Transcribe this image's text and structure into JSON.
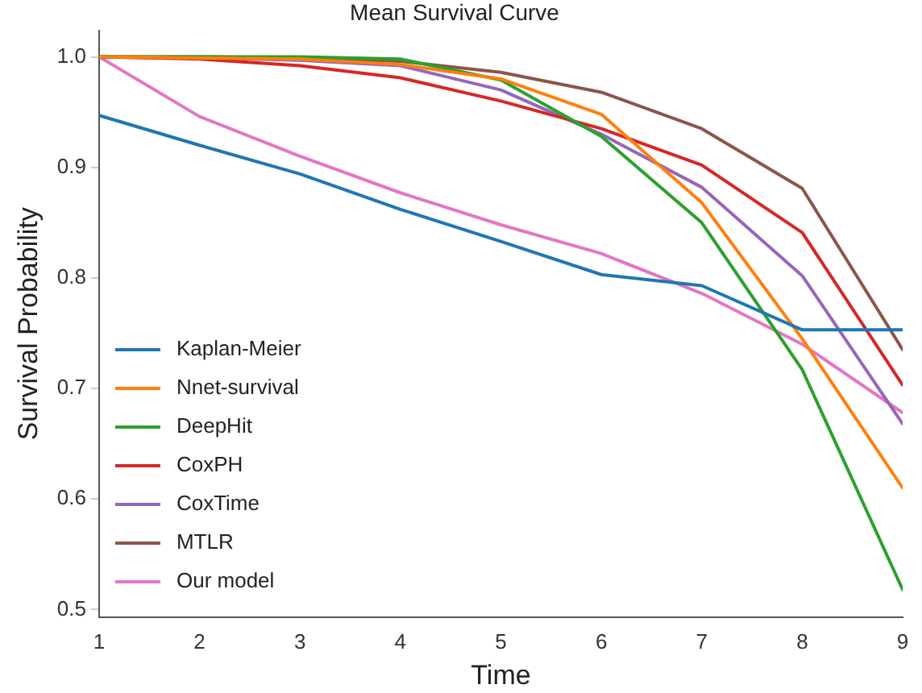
{
  "chart_data": {
    "type": "line",
    "title": "Mean Survival Curve",
    "xlabel": "Time",
    "ylabel": "Survival Probability",
    "x": [
      1,
      2,
      3,
      4,
      5,
      6,
      7,
      8,
      9
    ],
    "xlim": [
      1,
      9
    ],
    "xticks": [
      1,
      2,
      3,
      4,
      5,
      6,
      7,
      8,
      9
    ],
    "ylim": [
      0.493,
      1.024
    ],
    "yticks": [
      0.5,
      0.6,
      0.7,
      0.8,
      0.9,
      {
        "value": 1,
        "label": "1.0"
      }
    ],
    "grid": false,
    "legend": "bottom left",
    "marker": "none",
    "line_style": "solid",
    "series": [
      {
        "name": "Kaplan-Meier",
        "color": "#1f77b4",
        "values": [
          0.947,
          0.92,
          0.894,
          0.862,
          0.833,
          0.803,
          0.793,
          0.753,
          0.753
        ]
      },
      {
        "name": "Nnet-survival",
        "color": "#ff7f0e",
        "values": [
          1.0,
          0.999,
          0.998,
          0.993,
          0.98,
          0.948,
          0.868,
          0.745,
          0.61
        ]
      },
      {
        "name": "DeepHit",
        "color": "#2ca02c",
        "values": [
          1.0,
          1.0,
          1.0,
          0.998,
          0.979,
          0.928,
          0.85,
          0.717,
          0.518
        ]
      },
      {
        "name": "CoxPH",
        "color": "#d62728",
        "values": [
          1.0,
          0.998,
          0.992,
          0.981,
          0.96,
          0.935,
          0.902,
          0.841,
          0.703
        ]
      },
      {
        "name": "CoxTime",
        "color": "#9467bd",
        "values": [
          1.0,
          0.999,
          0.997,
          0.992,
          0.97,
          0.93,
          0.882,
          0.802,
          0.668
        ]
      },
      {
        "name": "MTLR",
        "color": "#8c564b",
        "values": [
          1.0,
          1.0,
          0.999,
          0.996,
          0.986,
          0.968,
          0.935,
          0.881,
          0.735
        ]
      },
      {
        "name": "Our model",
        "color": "#e377c2",
        "values": [
          1.0,
          0.946,
          0.91,
          0.877,
          0.848,
          0.822,
          0.786,
          0.74,
          0.678
        ]
      }
    ]
  }
}
